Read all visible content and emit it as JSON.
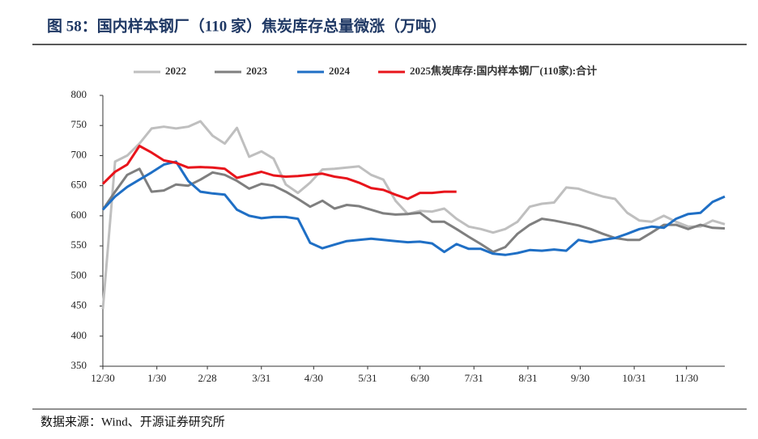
{
  "chart_data": {
    "type": "line",
    "title": "图 58：国内样本钢厂（110 家）焦炭库存总量微涨（万吨）",
    "source": "数据来源：Wind、开源证券研究所",
    "x": [
      0,
      7,
      14,
      21,
      28,
      35,
      42,
      49,
      56,
      63,
      70,
      77,
      84,
      91,
      98,
      105,
      112,
      119,
      126,
      133,
      140,
      147,
      154,
      161,
      168,
      175,
      182,
      189,
      196,
      203,
      210,
      217,
      224,
      231,
      238,
      245,
      252,
      259,
      266,
      273,
      280,
      287,
      294,
      301,
      308,
      315,
      322,
      329,
      336,
      343,
      350,
      357
    ],
    "xlim": [
      0,
      357
    ],
    "xticks": [
      {
        "value": 0,
        "label": "12/30"
      },
      {
        "value": 31,
        "label": "1/30"
      },
      {
        "value": 60,
        "label": "2/28"
      },
      {
        "value": 91,
        "label": "3/31"
      },
      {
        "value": 121,
        "label": "4/30"
      },
      {
        "value": 152,
        "label": "5/31"
      },
      {
        "value": 182,
        "label": "6/30"
      },
      {
        "value": 213,
        "label": "7/31"
      },
      {
        "value": 244,
        "label": "8/31"
      },
      {
        "value": 274,
        "label": "9/30"
      },
      {
        "value": 305,
        "label": "10/31"
      },
      {
        "value": 335,
        "label": "11/30"
      }
    ],
    "ylim": [
      350,
      800
    ],
    "yticks": [
      350,
      400,
      450,
      500,
      550,
      600,
      650,
      700,
      750,
      800
    ],
    "series": [
      {
        "name": "2022",
        "color": "#bfbfbf",
        "values": [
          445,
          690,
          700,
          720,
          745,
          748,
          745,
          748,
          757,
          733,
          720,
          746,
          698,
          707,
          695,
          652,
          638,
          655,
          677,
          678,
          680,
          682,
          668,
          660,
          625,
          603,
          608,
          607,
          612,
          595,
          582,
          578,
          572,
          578,
          590,
          615,
          620,
          622,
          647,
          645,
          638,
          632,
          628,
          605,
          592,
          590,
          600,
          590,
          582,
          582,
          592,
          586
        ]
      },
      {
        "name": "2023",
        "color": "#7f7f7f",
        "values": [
          610,
          640,
          668,
          678,
          640,
          642,
          652,
          650,
          660,
          672,
          668,
          658,
          645,
          653,
          650,
          640,
          628,
          615,
          625,
          612,
          618,
          616,
          610,
          604,
          602,
          603,
          605,
          590,
          590,
          578,
          565,
          553,
          540,
          548,
          570,
          585,
          595,
          592,
          588,
          584,
          578,
          570,
          563,
          560,
          560,
          572,
          585,
          585,
          578,
          585,
          580,
          579
        ]
      },
      {
        "name": "2024",
        "color": "#1f6fc5",
        "values": [
          610,
          632,
          648,
          660,
          672,
          685,
          690,
          658,
          640,
          637,
          635,
          610,
          600,
          596,
          598,
          598,
          595,
          555,
          546,
          552,
          558,
          560,
          562,
          560,
          558,
          556,
          557,
          554,
          540,
          553,
          545,
          545,
          537,
          535,
          538,
          543,
          542,
          544,
          542,
          560,
          556,
          560,
          563,
          570,
          578,
          582,
          580,
          595,
          603,
          605,
          623,
          632
        ]
      },
      {
        "name": "2025焦炭库存:国内样本钢厂(110家):合计",
        "color": "#e8141b",
        "values": [
          653,
          673,
          685,
          716,
          705,
          692,
          688,
          680,
          681,
          680,
          678,
          663,
          668,
          673,
          667,
          665,
          666,
          668,
          670,
          665,
          662,
          655,
          646,
          643,
          635,
          628,
          638,
          638,
          640,
          640,
          null,
          null,
          null,
          null,
          null,
          null,
          null,
          null,
          null,
          null,
          null,
          null,
          null,
          null,
          null,
          null,
          null,
          null,
          null,
          null,
          null,
          null
        ]
      }
    ]
  }
}
